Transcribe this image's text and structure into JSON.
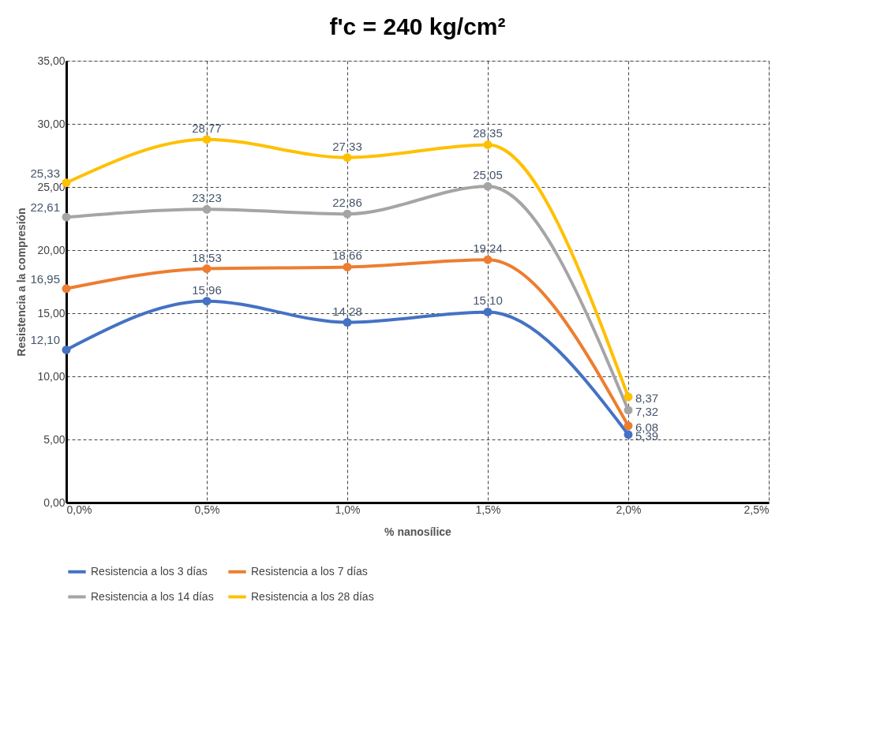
{
  "chart_data": {
    "type": "line",
    "title": "f'c = 240 kg/cm²",
    "xlabel": "% nanosílice",
    "ylabel": "Resistencia a la compresión",
    "x": [
      0,
      0.5,
      1.0,
      1.5,
      2.0
    ],
    "xlim": [
      0,
      2.5
    ],
    "xticks": [
      {
        "value": 0,
        "label": "0,0%"
      },
      {
        "value": 0.5,
        "label": "0,5%"
      },
      {
        "value": 1.0,
        "label": "1,0%"
      },
      {
        "value": 1.5,
        "label": "1,5%"
      },
      {
        "value": 2.0,
        "label": "2,0%"
      },
      {
        "value": 2.5,
        "label": "2,5%"
      }
    ],
    "ylim": [
      0,
      35
    ],
    "yticks": [
      {
        "value": 0,
        "label": "0,00"
      },
      {
        "value": 5,
        "label": "5,00"
      },
      {
        "value": 10,
        "label": "10,00"
      },
      {
        "value": 15,
        "label": "15,00"
      },
      {
        "value": 20,
        "label": "20,00"
      },
      {
        "value": 25,
        "label": "25,00"
      },
      {
        "value": 30,
        "label": "30,00"
      },
      {
        "value": 35,
        "label": "35,00"
      }
    ],
    "series": [
      {
        "name": "Resistencia a los 3 días",
        "color": "#4472c4",
        "values": [
          12.1,
          15.96,
          14.28,
          15.1,
          5.39
        ],
        "value_labels": [
          "12,10",
          "15,96",
          "14,28",
          "15,10",
          "5,39"
        ]
      },
      {
        "name": "Resistencia a los 7 días",
        "color": "#ed7d31",
        "values": [
          16.95,
          18.53,
          18.66,
          19.24,
          6.08
        ],
        "value_labels": [
          "16,95",
          "18,53",
          "18,66",
          "19,24",
          "6,08"
        ]
      },
      {
        "name": "Resistencia a los 14 días",
        "color": "#a5a5a5",
        "values": [
          22.61,
          23.23,
          22.86,
          25.05,
          7.32
        ],
        "value_labels": [
          "22,61",
          "23,23",
          "22,86",
          "25,05",
          "7,32"
        ]
      },
      {
        "name": "Resistencia a los 28 días",
        "color": "#ffc000",
        "values": [
          25.33,
          28.77,
          27.33,
          28.35,
          8.37
        ],
        "value_labels": [
          "25,33",
          "28,77",
          "27,33",
          "28,35",
          "8,37"
        ]
      }
    ],
    "grid": true,
    "legend": "bottom",
    "marker": "circle",
    "line_style": "solid"
  }
}
